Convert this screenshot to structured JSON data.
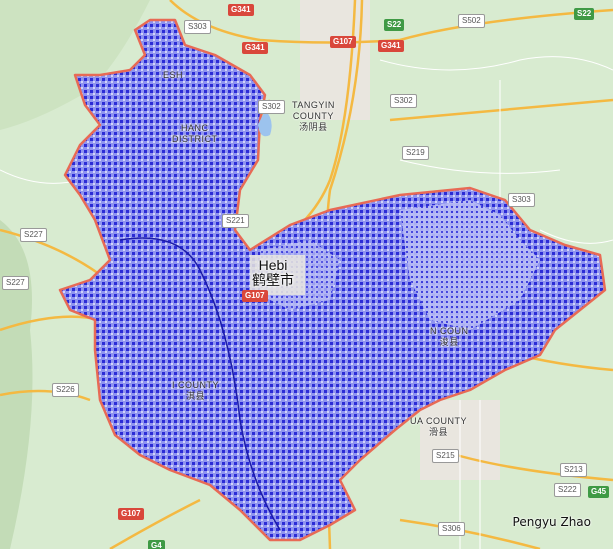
{
  "map": {
    "credit": "Pengyu Zhao",
    "colors": {
      "background": "#d8ebd0",
      "terrain": "#c3dcb7",
      "urban": "#e9e6df",
      "road_major": "#f4b942",
      "road_minor": "#ffffff",
      "boundary": "#e86a55",
      "overlay": "#2c2cd6",
      "overlay_light": "#8f94f0",
      "water": "#9cc3ee"
    },
    "roads": [
      {
        "label": "G341",
        "type": "red"
      },
      {
        "label": "S303",
        "type": "gray"
      },
      {
        "label": "G341",
        "type": "red"
      },
      {
        "label": "G107",
        "type": "red"
      },
      {
        "label": "G341",
        "type": "red"
      },
      {
        "label": "S22",
        "type": "green"
      },
      {
        "label": "S502",
        "type": "gray"
      },
      {
        "label": "S22",
        "type": "green"
      },
      {
        "label": "S302",
        "type": "gray"
      },
      {
        "label": "S302",
        "type": "gray"
      },
      {
        "label": "S219",
        "type": "gray"
      },
      {
        "label": "S303",
        "type": "gray"
      },
      {
        "label": "S227",
        "type": "gray"
      },
      {
        "label": "S227",
        "type": "gray"
      },
      {
        "label": "S221",
        "type": "gray"
      },
      {
        "label": "G107",
        "type": "red"
      },
      {
        "label": "S226",
        "type": "gray"
      },
      {
        "label": "S215",
        "type": "gray"
      },
      {
        "label": "S213",
        "type": "gray"
      },
      {
        "label": "S222",
        "type": "gray"
      },
      {
        "label": "G45",
        "type": "green"
      },
      {
        "label": "G107",
        "type": "red"
      },
      {
        "label": "S306",
        "type": "gray"
      },
      {
        "label": "G4",
        "type": "green"
      }
    ],
    "places": [
      {
        "en": "TANGYIN",
        "en2": "COUNTY",
        "cn": "汤阴县"
      },
      {
        "en": "ESH",
        "en2": "",
        "cn": ""
      },
      {
        "en": "HANC",
        "en2": "DISTRICT",
        "cn": ""
      },
      {
        "en": "N COUN",
        "en2": "",
        "cn": "浚县"
      },
      {
        "en": "I COUNTY",
        "en2": "",
        "cn": "淇县"
      },
      {
        "en": "UA COUNTY",
        "en2": "",
        "cn": "滑县"
      }
    ],
    "city": {
      "en": "Hebi",
      "cn": "鹤壁市"
    }
  }
}
